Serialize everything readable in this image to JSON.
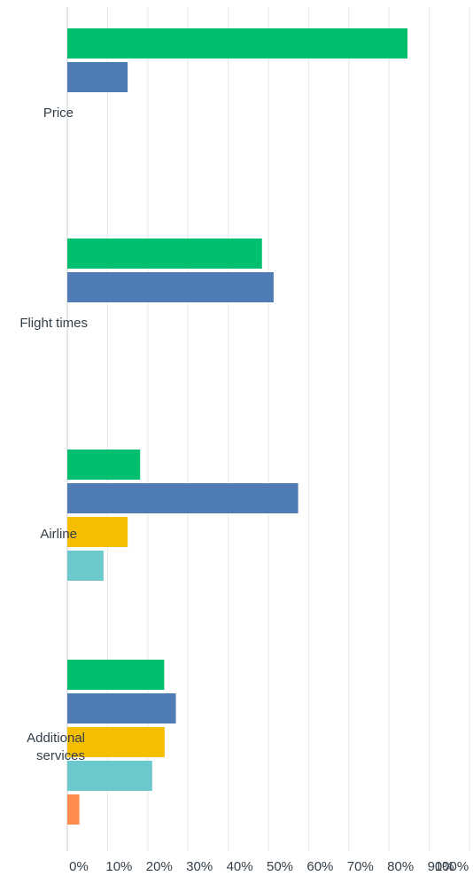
{
  "chart_data": {
    "type": "bar",
    "orientation": "horizontal",
    "grouped": true,
    "categories": [
      "Price",
      "Flight times",
      "Airline",
      "Additional services"
    ],
    "category_label_lines": [
      [
        "Price"
      ],
      [
        "Flight times"
      ],
      [
        "Airline"
      ],
      [
        "Additional",
        "services"
      ]
    ],
    "series": [
      {
        "color": "#00bf6f",
        "values": [
          84.6,
          48.4,
          18.1,
          24.1
        ]
      },
      {
        "color": "#507cb6",
        "values": [
          15.0,
          51.3,
          57.4,
          27.0
        ]
      },
      {
        "color": "#f6be00",
        "values": [
          null,
          null,
          15.0,
          24.2
        ]
      },
      {
        "color": "#6bc8cd",
        "values": [
          null,
          null,
          9.0,
          21.1
        ]
      },
      {
        "color": "#ff8b4f",
        "values": [
          null,
          null,
          null,
          3.0
        ]
      }
    ],
    "xlim": [
      0,
      100
    ],
    "x_ticks": [
      "0%",
      "10%",
      "20%",
      "30%",
      "40%",
      "50%",
      "60%",
      "70%",
      "80%",
      "90%",
      "100%"
    ],
    "grid": true,
    "legend": "none",
    "title": "",
    "xlabel": "",
    "ylabel": ""
  }
}
